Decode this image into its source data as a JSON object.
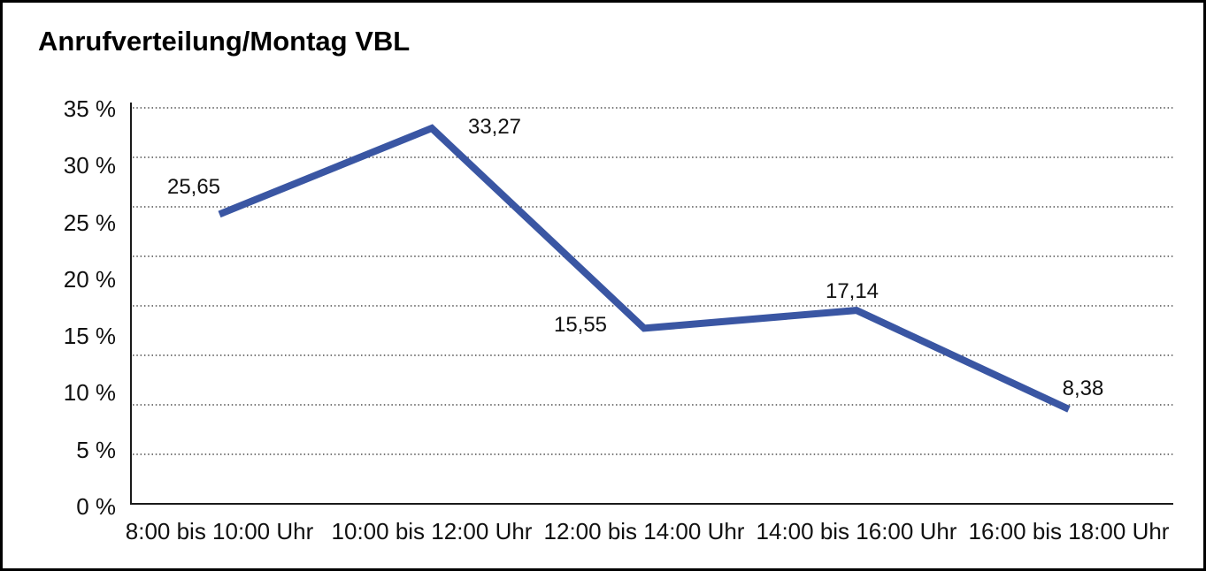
{
  "title": "Anrufverteilung/Montag VBL",
  "colors": {
    "line": "#3A56A3",
    "grid": "#4d4d4d",
    "axis": "#1a1a1a",
    "background": "#ffffff",
    "frame_border": "#000000",
    "text": "#111111"
  },
  "chart_data": {
    "type": "line",
    "title": "Anrufverteilung/Montag VBL",
    "categories": [
      "8:00 bis 10:00 Uhr",
      "10:00 bis 12:00 Uhr",
      "12:00 bis 14:00 Uhr",
      "14:00 bis 16:00 Uhr",
      "16:00 bis 18:00 Uhr"
    ],
    "values": [
      25.65,
      33.27,
      15.55,
      17.14,
      8.38
    ],
    "value_labels": [
      "25,65",
      "33,27",
      "15,55",
      "17,14",
      "8,38"
    ],
    "xlabel": "",
    "ylabel": "",
    "y_tick_labels": [
      "35 %",
      "30 %",
      "25 %",
      "20 %",
      "15 %",
      "10 %",
      "5 %",
      "0 %"
    ],
    "y_tick_values": [
      35,
      30,
      25,
      20,
      15,
      10,
      5,
      0
    ],
    "ylim": [
      0,
      35
    ],
    "grid": "horizontal dotted",
    "legend_position": "none",
    "series_name": "Anrufverteilung Montag VBL"
  }
}
